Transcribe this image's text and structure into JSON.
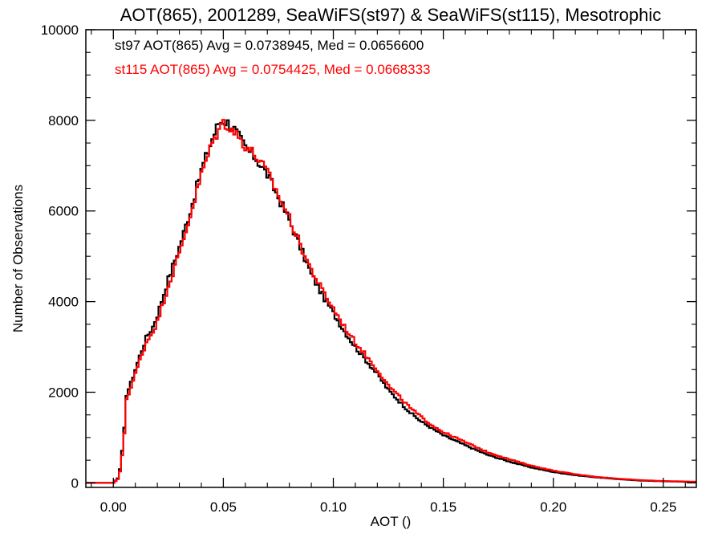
{
  "chart_data": {
    "type": "line",
    "style": "step-histogram",
    "title": "AOT(865), 2001289, SeaWiFS(st97) & SeaWiFS(st115), Mesotrophic",
    "xlabel": "AOT ()",
    "ylabel": "Number of Observations",
    "xlim": [
      -0.0125,
      0.265
    ],
    "ylim": [
      -100,
      10000
    ],
    "xticks": [
      "0.00",
      "0.05",
      "0.10",
      "0.15",
      "0.20",
      "0.25"
    ],
    "xtick_values": [
      0.0,
      0.05,
      0.1,
      0.15,
      0.2,
      0.25
    ],
    "yticks": [
      "0",
      "2000",
      "4000",
      "6000",
      "8000",
      "10000"
    ],
    "ytick_values": [
      0,
      2000,
      4000,
      6000,
      8000,
      10000
    ],
    "grid": false,
    "series": [
      {
        "name": "st97",
        "color": "#000000",
        "stats_text": "st97 AOT(865) Avg = 0.0738945, Med = 0.0656600",
        "x": [
          -0.0125,
          0.0,
          0.002,
          0.003,
          0.004,
          0.005,
          0.006,
          0.008,
          0.01,
          0.012,
          0.015,
          0.018,
          0.02,
          0.025,
          0.03,
          0.035,
          0.04,
          0.045,
          0.048,
          0.05,
          0.052,
          0.055,
          0.06,
          0.065,
          0.07,
          0.075,
          0.08,
          0.085,
          0.09,
          0.095,
          0.1,
          0.105,
          0.11,
          0.115,
          0.12,
          0.125,
          0.13,
          0.135,
          0.14,
          0.145,
          0.15,
          0.16,
          0.17,
          0.18,
          0.19,
          0.2,
          0.21,
          0.22,
          0.23,
          0.24,
          0.25,
          0.265
        ],
        "y": [
          0,
          0,
          100,
          300,
          700,
          1200,
          1950,
          2200,
          2500,
          2800,
          3200,
          3450,
          3700,
          4500,
          5200,
          6000,
          6900,
          7600,
          7950,
          8000,
          7950,
          7800,
          7400,
          7150,
          6800,
          6300,
          5800,
          5200,
          4600,
          4150,
          3750,
          3350,
          3000,
          2700,
          2400,
          2050,
          1800,
          1550,
          1350,
          1200,
          1050,
          830,
          620,
          470,
          340,
          240,
          170,
          120,
          80,
          50,
          35,
          20
        ]
      },
      {
        "name": "st115",
        "color": "#ff0000",
        "stats_text": "st115 AOT(865) Avg = 0.0754425, Med = 0.0668333",
        "x": [
          -0.0125,
          0.0,
          0.002,
          0.003,
          0.004,
          0.005,
          0.006,
          0.008,
          0.01,
          0.012,
          0.015,
          0.018,
          0.02,
          0.025,
          0.03,
          0.035,
          0.04,
          0.045,
          0.048,
          0.05,
          0.052,
          0.055,
          0.06,
          0.065,
          0.07,
          0.075,
          0.08,
          0.085,
          0.09,
          0.095,
          0.1,
          0.105,
          0.11,
          0.115,
          0.12,
          0.125,
          0.13,
          0.135,
          0.14,
          0.145,
          0.15,
          0.16,
          0.17,
          0.18,
          0.19,
          0.2,
          0.21,
          0.22,
          0.23,
          0.24,
          0.25,
          0.265
        ],
        "y": [
          0,
          0,
          80,
          250,
          600,
          1100,
          1850,
          2100,
          2400,
          2700,
          3100,
          3350,
          3550,
          4350,
          5050,
          5900,
          6800,
          7500,
          7800,
          7950,
          7900,
          7750,
          7450,
          7200,
          6850,
          6350,
          5850,
          5250,
          4700,
          4250,
          3850,
          3450,
          3100,
          2800,
          2500,
          2150,
          1900,
          1650,
          1450,
          1270,
          1120,
          900,
          680,
          520,
          380,
          270,
          190,
          130,
          90,
          60,
          40,
          25
        ]
      }
    ]
  }
}
